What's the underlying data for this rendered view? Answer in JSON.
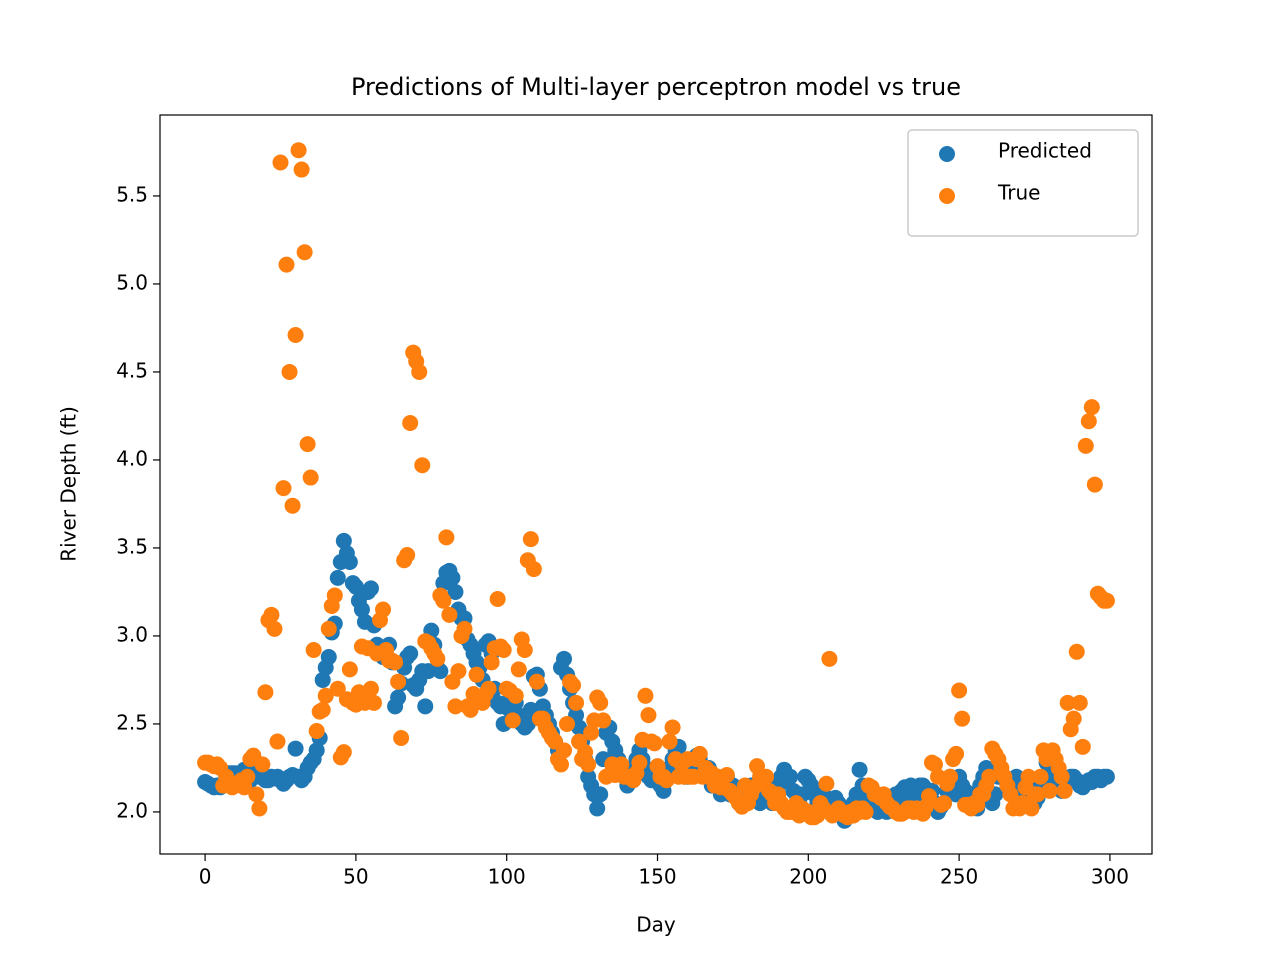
{
  "chart_data": {
    "type": "scatter",
    "title": "Predictions of Multi-layer perceptron model vs true",
    "xlabel": "Day",
    "ylabel": "River Depth (ft)",
    "xlim": [
      -14.95,
      313.95
    ],
    "ylim": [
      1.761,
      5.96
    ],
    "xticks": [
      0,
      50,
      100,
      150,
      200,
      250,
      300
    ],
    "yticks": [
      {
        "value": 2,
        "label": "2.0"
      },
      2.5,
      {
        "value": 3,
        "label": "3.0"
      },
      3.5,
      {
        "value": 4,
        "label": "4.0"
      },
      4.5,
      {
        "value": 5,
        "label": "5.0"
      },
      5.5
    ],
    "legend": "upper right",
    "x": [
      0,
      1,
      2,
      3,
      4,
      5,
      6,
      7,
      8,
      9,
      10,
      11,
      12,
      13,
      14,
      15,
      16,
      17,
      18,
      19,
      20,
      21,
      22,
      23,
      24,
      25,
      26,
      27,
      28,
      29,
      30,
      31,
      32,
      33,
      34,
      35,
      36,
      37,
      38,
      39,
      40,
      41,
      42,
      43,
      44,
      45,
      46,
      47,
      48,
      49,
      50,
      51,
      52,
      53,
      54,
      55,
      56,
      57,
      58,
      59,
      60,
      61,
      62,
      63,
      64,
      65,
      66,
      67,
      68,
      69,
      70,
      71,
      72,
      73,
      74,
      75,
      76,
      77,
      78,
      79,
      80,
      81,
      82,
      83,
      84,
      85,
      86,
      87,
      88,
      89,
      90,
      91,
      92,
      93,
      94,
      95,
      96,
      97,
      98,
      99,
      100,
      101,
      102,
      103,
      104,
      105,
      106,
      107,
      108,
      109,
      110,
      111,
      112,
      113,
      114,
      115,
      116,
      117,
      118,
      119,
      120,
      121,
      122,
      123,
      124,
      125,
      126,
      127,
      128,
      129,
      130,
      131,
      132,
      133,
      134,
      135,
      136,
      137,
      138,
      139,
      140,
      141,
      142,
      143,
      144,
      145,
      146,
      147,
      148,
      149,
      150,
      151,
      152,
      153,
      154,
      155,
      156,
      157,
      158,
      159,
      160,
      161,
      162,
      163,
      164,
      165,
      166,
      167,
      168,
      169,
      170,
      171,
      172,
      173,
      174,
      175,
      176,
      177,
      178,
      179,
      180,
      181,
      182,
      183,
      184,
      185,
      186,
      187,
      188,
      189,
      190,
      191,
      192,
      193,
      194,
      195,
      196,
      197,
      198,
      199,
      200,
      201,
      202,
      203,
      204,
      205,
      206,
      207,
      208,
      209,
      210,
      211,
      212,
      213,
      214,
      215,
      216,
      217,
      218,
      219,
      220,
      221,
      222,
      223,
      224,
      225,
      226,
      227,
      228,
      229,
      230,
      231,
      232,
      233,
      234,
      235,
      236,
      237,
      238,
      239,
      240,
      241,
      242,
      243,
      244,
      245,
      246,
      247,
      248,
      249,
      250,
      251,
      252,
      253,
      254,
      255,
      256,
      257,
      258,
      259,
      260,
      261,
      262,
      263,
      264,
      265,
      266,
      267,
      268,
      269,
      270,
      271,
      272,
      273,
      274,
      275,
      276,
      277,
      278,
      279,
      280,
      281,
      282,
      283,
      284,
      285,
      286,
      287,
      288,
      289,
      290,
      291,
      292,
      293,
      294,
      295,
      296,
      297,
      298,
      299
    ],
    "series": [
      {
        "name": "Predicted",
        "color": "#1f77b4",
        "values": [
          2.17,
          2.16,
          2.15,
          2.14,
          2.15,
          2.14,
          2.15,
          2.2,
          2.22,
          2.22,
          2.22,
          2.2,
          2.22,
          2.24,
          2.2,
          2.18,
          2.2,
          2.22,
          2.2,
          2.2,
          2.18,
          2.18,
          2.2,
          2.19,
          2.2,
          2.18,
          2.16,
          2.18,
          2.2,
          2.21,
          2.36,
          2.2,
          2.18,
          2.2,
          2.25,
          2.28,
          2.3,
          2.35,
          2.42,
          2.75,
          2.82,
          2.88,
          3.02,
          3.07,
          3.33,
          3.42,
          3.54,
          3.47,
          3.42,
          3.3,
          3.28,
          3.2,
          3.15,
          3.08,
          3.25,
          3.27,
          3.06,
          2.95,
          2.9,
          2.88,
          2.92,
          2.95,
          2.85,
          2.6,
          2.65,
          2.73,
          2.82,
          2.88,
          2.9,
          2.72,
          2.7,
          2.75,
          2.8,
          2.6,
          2.8,
          3.03,
          2.95,
          2.82,
          2.8,
          3.3,
          3.36,
          3.37,
          3.33,
          3.25,
          3.15,
          3.1,
          3.1,
          2.98,
          2.95,
          2.9,
          2.85,
          2.82,
          2.75,
          2.95,
          2.97,
          2.9,
          2.7,
          2.62,
          2.6,
          2.5,
          2.62,
          2.58,
          2.55,
          2.62,
          2.55,
          2.5,
          2.48,
          2.5,
          2.58,
          2.77,
          2.78,
          2.7,
          2.6,
          2.55,
          2.5,
          2.45,
          2.4,
          2.35,
          2.82,
          2.87,
          2.78,
          2.7,
          2.62,
          2.55,
          2.48,
          2.4,
          2.3,
          2.2,
          2.15,
          2.1,
          2.02,
          2.1,
          2.3,
          2.45,
          2.48,
          2.4,
          2.35,
          2.3,
          2.25,
          2.2,
          2.15,
          2.2,
          2.25,
          2.3,
          2.35,
          2.3,
          2.25,
          2.2,
          2.18,
          2.2,
          2.2,
          2.15,
          2.12,
          2.2,
          2.25,
          2.3,
          2.35,
          2.37,
          2.3,
          2.2,
          2.2,
          2.25,
          2.3,
          2.32,
          2.3,
          2.25,
          2.2,
          2.25,
          2.15,
          2.2,
          2.15,
          2.1,
          2.12,
          2.2,
          2.1,
          2.15,
          2.1,
          2.05,
          2.08,
          2.05,
          2.1,
          2.15,
          2.1,
          2.1,
          2.05,
          2.1,
          2.15,
          2.1,
          2.05,
          2.1,
          2.15,
          2.2,
          2.24,
          2.18,
          2.2,
          2.12,
          2.1,
          2.05,
          2.1,
          2.2,
          2.18,
          2.15,
          2.1,
          2.05,
          2.08,
          2.1,
          2.05,
          2.0,
          2.05,
          2.08,
          2.05,
          1.98,
          1.95,
          1.97,
          2.0,
          2.05,
          2.1,
          2.24,
          2.15,
          2.1,
          2.1,
          2.05,
          2.02,
          2.0,
          2.03,
          2.05,
          2.0,
          2.02,
          2.05,
          2.1,
          2.08,
          2.12,
          2.14,
          2.1,
          2.15,
          2.12,
          2.08,
          2.15,
          2.15,
          2.13,
          2.1,
          2.12,
          2.05,
          2.0,
          2.03,
          2.05,
          2.12,
          2.2,
          2.15,
          2.1,
          2.2,
          2.15,
          2.12,
          2.1,
          2.1,
          2.05,
          2.02,
          2.15,
          2.2,
          2.25,
          2.1,
          2.05,
          2.1,
          2.2,
          2.22,
          2.2,
          2.15,
          2.12,
          2.15,
          2.2,
          2.05,
          2.08,
          2.12,
          2.15,
          2.1,
          2.05,
          2.08,
          2.12,
          2.15,
          2.28,
          2.22,
          2.2,
          2.18,
          2.15,
          2.12,
          2.15,
          2.18,
          2.2,
          2.2,
          2.18,
          2.15,
          2.14,
          2.16,
          2.18,
          2.17,
          2.2,
          2.2,
          2.18,
          2.2,
          2.2
        ]
      },
      {
        "name": "True",
        "color": "#ff7f0e",
        "values": [
          2.28,
          2.28,
          2.27,
          2.26,
          2.27,
          2.25,
          2.15,
          2.2,
          2.15,
          2.14,
          2.15,
          2.16,
          2.18,
          2.14,
          2.2,
          2.3,
          2.32,
          2.1,
          2.02,
          2.27,
          2.68,
          3.09,
          3.12,
          3.04,
          2.4,
          5.69,
          3.84,
          5.11,
          4.5,
          3.74,
          4.71,
          5.76,
          5.65,
          5.18,
          4.09,
          3.9,
          2.92,
          2.46,
          2.57,
          2.58,
          2.66,
          3.04,
          3.17,
          3.23,
          2.7,
          2.31,
          2.34,
          2.64,
          2.81,
          2.62,
          2.61,
          2.68,
          2.94,
          2.62,
          2.93,
          2.7,
          2.62,
          2.9,
          3.09,
          3.15,
          2.92,
          2.86,
          2.86,
          2.85,
          2.74,
          2.42,
          3.43,
          3.46,
          4.21,
          4.61,
          4.56,
          4.5,
          3.97,
          2.97,
          2.96,
          2.93,
          2.9,
          2.87,
          3.23,
          3.2,
          3.56,
          3.12,
          2.74,
          2.6,
          2.8,
          3.0,
          3.04,
          2.6,
          2.58,
          2.67,
          2.78,
          2.64,
          2.62,
          2.67,
          2.7,
          2.85,
          2.93,
          3.21,
          2.94,
          2.92,
          2.7,
          2.69,
          2.52,
          2.66,
          2.81,
          2.98,
          2.92,
          3.43,
          3.55,
          3.38,
          2.74,
          2.53,
          2.53,
          2.48,
          2.45,
          2.42,
          2.4,
          2.3,
          2.27,
          2.35,
          2.5,
          2.74,
          2.72,
          2.62,
          2.4,
          2.3,
          2.34,
          2.27,
          2.45,
          2.52,
          2.65,
          2.62,
          2.52,
          2.2,
          2.21,
          2.27,
          2.21,
          2.25,
          2.27,
          2.2,
          2.2,
          2.2,
          2.18,
          2.22,
          2.28,
          2.41,
          2.66,
          2.55,
          2.4,
          2.39,
          2.26,
          2.2,
          2.2,
          2.18,
          2.4,
          2.48,
          2.3,
          2.2,
          2.27,
          2.2,
          2.3,
          2.2,
          2.2,
          2.3,
          2.33,
          2.2,
          2.25,
          2.2,
          2.22,
          2.15,
          2.2,
          2.14,
          2.2,
          2.21,
          2.12,
          2.1,
          2.08,
          2.05,
          2.03,
          2.15,
          2.05,
          2.1,
          2.14,
          2.26,
          2.2,
          2.16,
          2.2,
          2.12,
          2.1,
          2.05,
          2.1,
          2.05,
          2.02,
          2.0,
          2.0,
          2.02,
          2.05,
          1.98,
          2.02,
          2.0,
          2.0,
          1.97,
          1.97,
          1.98,
          2.05,
          2.02,
          2.16,
          2.87,
          1.98,
          2.0,
          2.02,
          2.0,
          1.98,
          1.97,
          2.0,
          1.98,
          2.02,
          2.0,
          2.02,
          2.0,
          2.15,
          2.14,
          2.1,
          2.1,
          2.08,
          2.1,
          2.05,
          2.03,
          2.02,
          2.0,
          1.99,
          1.99,
          2.0,
          2.02,
          2.02,
          2.0,
          2.02,
          2.0,
          1.99,
          2.03,
          2.09,
          2.28,
          2.27,
          2.2,
          2.04,
          2.05,
          2.16,
          2.2,
          2.3,
          2.33,
          2.69,
          2.53,
          2.04,
          2.04,
          2.02,
          2.05,
          2.04,
          2.1,
          2.1,
          2.15,
          2.2,
          2.36,
          2.33,
          2.3,
          2.25,
          2.2,
          2.15,
          2.1,
          2.02,
          2.05,
          2.02,
          2.05,
          2.14,
          2.2,
          2.02,
          2.1,
          2.1,
          2.2,
          2.35,
          2.3,
          2.12,
          2.35,
          2.3,
          2.25,
          2.2,
          2.12,
          2.62,
          2.47,
          2.53,
          2.91,
          2.62,
          2.37,
          4.08,
          4.22,
          4.3,
          3.86,
          3.24,
          3.22,
          3.2,
          3.2
        ]
      }
    ]
  }
}
